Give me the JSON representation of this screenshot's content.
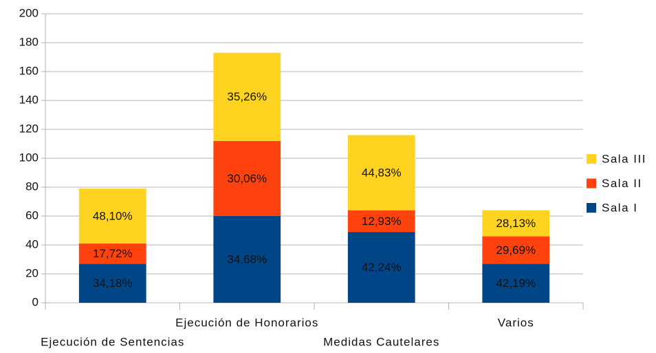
{
  "chart_data": {
    "type": "stacked_bar",
    "categories": [
      "Ejecución de Sentencias",
      "Ejecución de Honorarios",
      "Medidas Cautelares",
      "Varios"
    ],
    "series": [
      {
        "name": "Sala I",
        "color": "#004586",
        "values": [
          27,
          60,
          49,
          27
        ],
        "value_labels": [
          "34,18%",
          "34,68%",
          "42,24%",
          "42,19%"
        ]
      },
      {
        "name": "Sala II",
        "color": "#ff420e",
        "values": [
          14,
          52,
          15,
          19
        ],
        "value_labels": [
          "17,72%",
          "30,06%",
          "12,93%",
          "29,69%"
        ]
      },
      {
        "name": "Sala III",
        "color": "#ffd320",
        "values": [
          38,
          61,
          52,
          18
        ],
        "value_labels": [
          "48,10%",
          "35,26%",
          "44,83%",
          "28,13%"
        ]
      }
    ],
    "ylim": [
      0,
      200
    ],
    "yticks": [
      0,
      20,
      40,
      60,
      80,
      100,
      120,
      140,
      160,
      180,
      200
    ],
    "grid": true,
    "legend": "right"
  }
}
